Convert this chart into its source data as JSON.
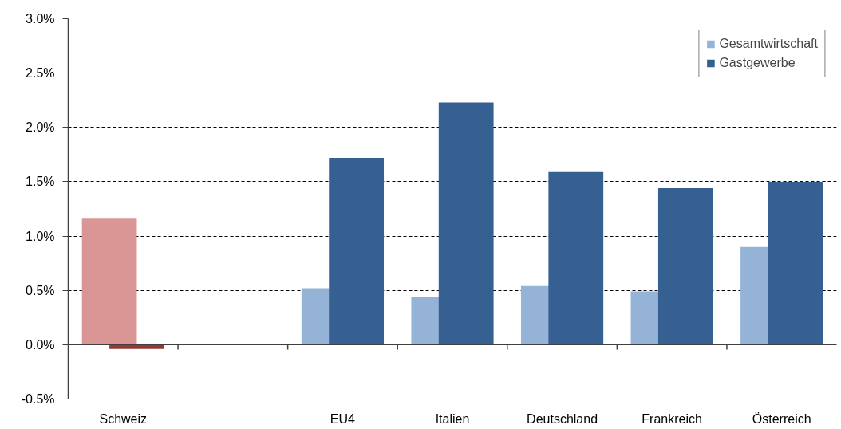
{
  "chart_data": {
    "type": "bar",
    "categories": [
      "Schweiz",
      null,
      "EU4",
      "Italien",
      "Deutschland",
      "Frankreich",
      "Österreich"
    ],
    "series": [
      {
        "name": "Gesamtwirtschaft",
        "color": "#95b3d7",
        "colors": [
          "#d99694",
          "#95b3d7",
          "#95b3d7",
          "#95b3d7",
          "#95b3d7",
          "#95b3d7",
          "#95b3d7"
        ],
        "values": [
          1.16,
          null,
          0.52,
          0.44,
          0.54,
          0.49,
          0.9
        ]
      },
      {
        "name": "Gastgewerbe",
        "color": "#366092",
        "colors": [
          "#953735",
          "#366092",
          "#366092",
          "#366092",
          "#366092",
          "#366092",
          "#366092"
        ],
        "values": [
          -0.04,
          null,
          1.72,
          2.23,
          1.59,
          1.44,
          1.5
        ]
      }
    ],
    "ylim": [
      -0.5,
      3.0
    ],
    "yticks": [
      {
        "value": -0.5,
        "label": "-0.5%"
      },
      {
        "value": 0.0,
        "label": "0.0%"
      },
      {
        "value": 0.5,
        "label": "0.5%"
      },
      {
        "value": 1.0,
        "label": "1.0%"
      },
      {
        "value": 1.5,
        "label": "1.5%"
      },
      {
        "value": 2.0,
        "label": "2.0%"
      },
      {
        "value": 2.5,
        "label": "2.5%"
      },
      {
        "value": 3.0,
        "label": "3.0%"
      }
    ],
    "grid": "y",
    "legend": "top right"
  }
}
